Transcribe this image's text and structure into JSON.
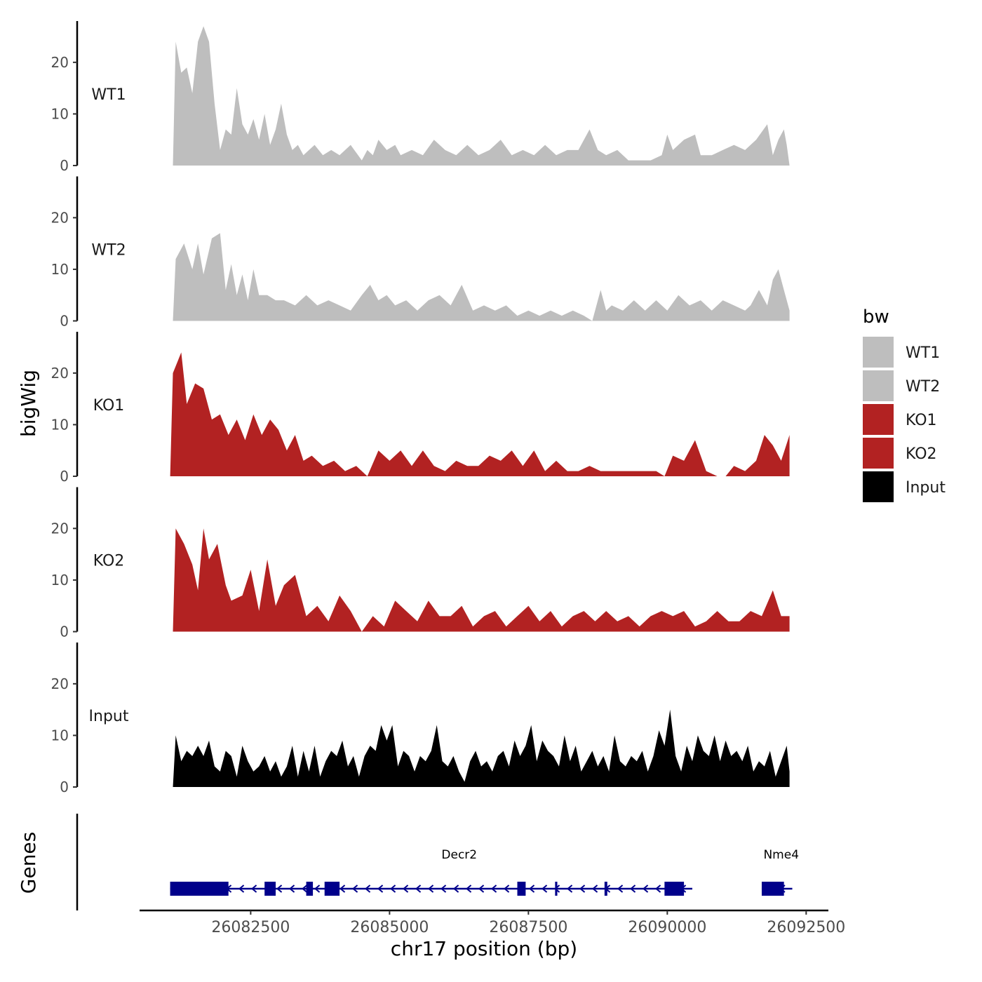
{
  "chart_data": {
    "type": "area",
    "xlabel": "chr17 position (bp)",
    "ylabel": "bigWig",
    "genes_label": "Genes",
    "xlim": [
      26080500,
      26092900
    ],
    "x_ticks": [
      26082500,
      26085000,
      26087500,
      26090000,
      26092500
    ],
    "x_tick_labels": [
      "26082500",
      "26085000",
      "26087500",
      "26090000",
      "26092500"
    ],
    "ylim": [
      0,
      28
    ],
    "y_ticks": [
      0,
      10,
      20
    ],
    "y_tick_labels": [
      "0",
      "10",
      "20"
    ],
    "legend": {
      "title": "bw",
      "position": "right",
      "entries": [
        {
          "name": "WT1",
          "color": "#bebebe"
        },
        {
          "name": "WT2",
          "color": "#bebebe"
        },
        {
          "name": "KO1",
          "color": "#b22222"
        },
        {
          "name": "KO2",
          "color": "#b22222"
        },
        {
          "name": "Input",
          "color": "#000000"
        }
      ]
    },
    "series": [
      {
        "name": "WT1",
        "color": "#bebebe",
        "x": [
          26081100,
          26081150,
          26081250,
          26081350,
          26081450,
          26081550,
          26081650,
          26081750,
          26081850,
          26081950,
          26082050,
          26082150,
          26082250,
          26082350,
          26082450,
          26082550,
          26082650,
          26082750,
          26082850,
          26082950,
          26083050,
          26083150,
          26083250,
          26083350,
          26083450,
          26083550,
          26083650,
          26083800,
          26083950,
          26084100,
          26084300,
          26084500,
          26084600,
          26084700,
          26084800,
          26084950,
          26085100,
          26085200,
          26085400,
          26085600,
          26085800,
          26086000,
          26086200,
          26086400,
          26086600,
          26086800,
          26087000,
          26087200,
          26087400,
          26087600,
          26087800,
          26088000,
          26088200,
          26088400,
          26088600,
          26088750,
          26088900,
          26089100,
          26089300,
          26089500,
          26089700,
          26089900,
          26090000,
          26090100,
          26090300,
          26090500,
          26090600,
          26090800,
          26091000,
          26091200,
          26091400,
          26091600,
          26091800,
          26091900,
          26092000,
          26092100,
          26092150,
          26092200
        ],
        "y": [
          0,
          24,
          18,
          19,
          14,
          24,
          27,
          24,
          12,
          3,
          7,
          6,
          15,
          8,
          6,
          9,
          5,
          10,
          4,
          7,
          12,
          6,
          3,
          4,
          2,
          3,
          4,
          2,
          3,
          2,
          4,
          1,
          3,
          2,
          5,
          3,
          4,
          2,
          3,
          2,
          5,
          3,
          2,
          4,
          2,
          3,
          5,
          2,
          3,
          2,
          4,
          2,
          3,
          3,
          7,
          3,
          2,
          3,
          1,
          1,
          1,
          2,
          6,
          3,
          5,
          6,
          2,
          2,
          3,
          4,
          3,
          5,
          8,
          2,
          5,
          7,
          4,
          0
        ]
      },
      {
        "name": "WT2",
        "color": "#bebebe",
        "x": [
          26081100,
          26081150,
          26081300,
          26081450,
          26081550,
          26081650,
          26081800,
          26081950,
          26082050,
          26082150,
          26082250,
          26082350,
          26082450,
          26082550,
          26082650,
          26082800,
          26082950,
          26083100,
          26083300,
          26083500,
          26083700,
          26083900,
          26084100,
          26084300,
          26084500,
          26084650,
          26084800,
          26084950,
          26085100,
          26085300,
          26085500,
          26085700,
          26085900,
          26086100,
          26086300,
          26086500,
          26086700,
          26086900,
          26087100,
          26087300,
          26087500,
          26087700,
          26087900,
          26088100,
          26088300,
          26088500,
          26088650,
          26088800,
          26088900,
          26089000,
          26089200,
          26089400,
          26089600,
          26089800,
          26090000,
          26090200,
          26090400,
          26090600,
          26090800,
          26091000,
          26091200,
          26091400,
          26091500,
          26091650,
          26091800,
          26091900,
          26092000,
          26092100,
          26092200
        ],
        "y": [
          0,
          12,
          15,
          10,
          15,
          9,
          16,
          17,
          6,
          11,
          5,
          9,
          4,
          10,
          5,
          5,
          4,
          4,
          3,
          5,
          3,
          4,
          3,
          2,
          5,
          7,
          4,
          5,
          3,
          4,
          2,
          4,
          5,
          3,
          7,
          2,
          3,
          2,
          3,
          1,
          2,
          1,
          2,
          1,
          2,
          1,
          0,
          6,
          2,
          3,
          2,
          4,
          2,
          4,
          2,
          5,
          3,
          4,
          2,
          4,
          3,
          2,
          3,
          6,
          3,
          8,
          10,
          6,
          2
        ]
      },
      {
        "name": "KO1",
        "color": "#b22222",
        "x": [
          26081050,
          26081100,
          26081250,
          26081350,
          26081500,
          26081650,
          26081800,
          26081950,
          26082100,
          26082250,
          26082400,
          26082550,
          26082700,
          26082850,
          26083000,
          26083150,
          26083300,
          26083450,
          26083600,
          26083800,
          26084000,
          26084200,
          26084400,
          26084600,
          26084800,
          26085000,
          26085200,
          26085400,
          26085600,
          26085800,
          26086000,
          26086200,
          26086400,
          26086600,
          26086800,
          26087000,
          26087200,
          26087400,
          26087600,
          26087800,
          26088000,
          26088200,
          26088400,
          26088600,
          26088800,
          26089000,
          26089200,
          26089400,
          26089600,
          26089800,
          26089950,
          26090100,
          26090300,
          26090500,
          26090700,
          26090900,
          26091050,
          26091200,
          26091400,
          26091600,
          26091750,
          26091900,
          26092050,
          26092200
        ],
        "y": [
          0,
          20,
          24,
          14,
          18,
          17,
          11,
          12,
          8,
          11,
          7,
          12,
          8,
          11,
          9,
          5,
          8,
          3,
          4,
          2,
          3,
          1,
          2,
          0,
          5,
          3,
          5,
          2,
          5,
          2,
          1,
          3,
          2,
          2,
          4,
          3,
          5,
          2,
          5,
          1,
          3,
          1,
          1,
          2,
          1,
          1,
          1,
          1,
          1,
          1,
          0,
          4,
          3,
          7,
          1,
          0,
          0,
          2,
          1,
          3,
          8,
          6,
          3,
          8
        ]
      },
      {
        "name": "KO2",
        "color": "#b22222",
        "x": [
          26081100,
          26081150,
          26081300,
          26081450,
          26081550,
          26081650,
          26081750,
          26081900,
          26082050,
          26082150,
          26082350,
          26082500,
          26082650,
          26082800,
          26082950,
          26083100,
          26083300,
          26083500,
          26083700,
          26083900,
          26084100,
          26084300,
          26084500,
          26084700,
          26084900,
          26085100,
          26085300,
          26085500,
          26085700,
          26085900,
          26086100,
          26086300,
          26086500,
          26086700,
          26086900,
          26087100,
          26087300,
          26087500,
          26087700,
          26087900,
          26088100,
          26088300,
          26088500,
          26088700,
          26088900,
          26089100,
          26089300,
          26089500,
          26089700,
          26089900,
          26090100,
          26090300,
          26090500,
          26090700,
          26090900,
          26091100,
          26091300,
          26091500,
          26091700,
          26091900,
          26092050,
          26092200
        ],
        "y": [
          0,
          20,
          17,
          13,
          8,
          20,
          14,
          17,
          9,
          6,
          7,
          12,
          4,
          14,
          5,
          9,
          11,
          3,
          5,
          2,
          7,
          4,
          0,
          3,
          1,
          6,
          4,
          2,
          6,
          3,
          3,
          5,
          1,
          3,
          4,
          1,
          3,
          5,
          2,
          4,
          1,
          3,
          4,
          2,
          4,
          2,
          3,
          1,
          3,
          4,
          3,
          4,
          1,
          2,
          4,
          2,
          2,
          4,
          3,
          8,
          3,
          3
        ]
      },
      {
        "name": "Input",
        "color": "#000000",
        "x": [
          26081100,
          26081150,
          26081250,
          26081350,
          26081450,
          26081550,
          26081650,
          26081750,
          26081850,
          26081950,
          26082050,
          26082150,
          26082250,
          26082350,
          26082450,
          26082550,
          26082650,
          26082750,
          26082850,
          26082950,
          26083050,
          26083150,
          26083250,
          26083350,
          26083450,
          26083550,
          26083650,
          26083750,
          26083850,
          26083950,
          26084050,
          26084150,
          26084250,
          26084350,
          26084450,
          26084550,
          26084650,
          26084750,
          26084850,
          26084950,
          26085050,
          26085150,
          26085250,
          26085350,
          26085450,
          26085550,
          26085650,
          26085750,
          26085850,
          26085950,
          26086050,
          26086150,
          26086250,
          26086350,
          26086450,
          26086550,
          26086650,
          26086750,
          26086850,
          26086950,
          26087050,
          26087150,
          26087250,
          26087350,
          26087450,
          26087550,
          26087650,
          26087750,
          26087850,
          26087950,
          26088050,
          26088150,
          26088250,
          26088350,
          26088450,
          26088550,
          26088650,
          26088750,
          26088850,
          26088950,
          26089050,
          26089150,
          26089250,
          26089350,
          26089450,
          26089550,
          26089650,
          26089750,
          26089850,
          26089950,
          26090050,
          26090150,
          26090250,
          26090350,
          26090450,
          26090550,
          26090650,
          26090750,
          26090850,
          26090950,
          26091050,
          26091150,
          26091250,
          26091350,
          26091450,
          26091550,
          26091650,
          26091750,
          26091850,
          26091950,
          26092050,
          26092150,
          26092200
        ],
        "y": [
          0,
          10,
          5,
          7,
          6,
          8,
          6,
          9,
          4,
          3,
          7,
          6,
          2,
          8,
          5,
          3,
          4,
          6,
          3,
          5,
          2,
          4,
          8,
          2,
          7,
          3,
          8,
          2,
          5,
          7,
          6,
          9,
          4,
          6,
          2,
          6,
          8,
          7,
          12,
          9,
          12,
          4,
          7,
          6,
          3,
          6,
          5,
          7,
          12,
          5,
          4,
          6,
          3,
          1,
          5,
          7,
          4,
          5,
          3,
          6,
          7,
          4,
          9,
          6,
          8,
          12,
          5,
          9,
          7,
          6,
          4,
          10,
          5,
          8,
          3,
          5,
          7,
          4,
          6,
          3,
          10,
          5,
          4,
          6,
          5,
          7,
          3,
          6,
          11,
          8,
          15,
          6,
          3,
          8,
          5,
          10,
          7,
          6,
          10,
          5,
          9,
          6,
          7,
          5,
          8,
          3,
          5,
          4,
          7,
          2,
          5,
          8,
          3
        ]
      }
    ],
    "genes": [
      {
        "name": "Decr2",
        "strand": "-",
        "start": 26081050,
        "end": 26090450,
        "exons": [
          [
            26081050,
            26082100
          ],
          [
            26082750,
            26082950
          ],
          [
            26083500,
            26083620
          ],
          [
            26083830,
            26084100
          ],
          [
            26087300,
            26087450
          ],
          [
            26087980,
            26088020
          ],
          [
            26088870,
            26088920
          ],
          [
            26089950,
            26090300
          ]
        ]
      },
      {
        "name": "Nme4",
        "strand": "-",
        "start": 26091700,
        "end": 26092250,
        "exons": [
          [
            26091700,
            26092100
          ]
        ]
      }
    ]
  }
}
